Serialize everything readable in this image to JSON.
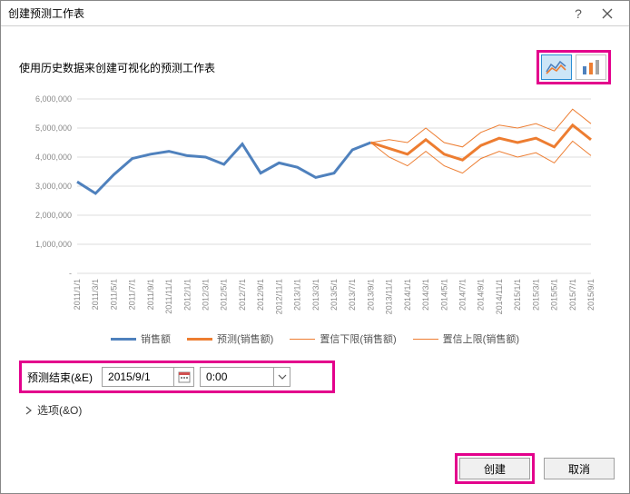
{
  "dialog": {
    "title": "创建预测工作表",
    "subtitle": "使用历史数据来创建可视化的预测工作表"
  },
  "chart_types": {
    "line_active": true
  },
  "chart": {
    "type": "line",
    "ylim": [
      0,
      6000000
    ],
    "ytick_step": 1000000,
    "ylabels": [
      "-",
      "1,000,000",
      "2,000,000",
      "3,000,000",
      "4,000,000",
      "5,000,000",
      "6,000,000"
    ],
    "xlabels": [
      "2011/1/1",
      "2011/3/1",
      "2011/5/1",
      "2011/7/1",
      "2011/9/1",
      "2011/11/1",
      "2012/1/1",
      "2012/3/1",
      "2012/5/1",
      "2012/7/1",
      "2012/9/1",
      "2012/11/1",
      "2013/1/1",
      "2013/3/1",
      "2013/5/1",
      "2013/7/1",
      "2013/9/1",
      "2013/11/1",
      "2014/1/1",
      "2014/3/1",
      "2014/5/1",
      "2014/7/1",
      "2014/9/1",
      "2014/11/1",
      "2015/1/1",
      "2015/3/1",
      "2015/5/1",
      "2015/7/1",
      "2015/9/1"
    ],
    "split_index": 16,
    "actual": [
      3150000,
      2750000,
      3400000,
      3950000,
      4100000,
      4200000,
      4050000,
      4000000,
      3750000,
      4450000,
      3450000,
      3800000,
      3650000,
      3300000,
      3450000,
      4250000,
      4500000
    ],
    "forecast": [
      4500000,
      4300000,
      4100000,
      4600000,
      4100000,
      3900000,
      4400000,
      4650000,
      4500000,
      4650000,
      4350000,
      5100000,
      4600000
    ],
    "lower": [
      4500000,
      4000000,
      3700000,
      4200000,
      3700000,
      3450000,
      3950000,
      4200000,
      4000000,
      4150000,
      3800000,
      4550000,
      4050000
    ],
    "upper": [
      4500000,
      4600000,
      4500000,
      5000000,
      4500000,
      4350000,
      4850000,
      5100000,
      5000000,
      5150000,
      4900000,
      5650000,
      5150000
    ],
    "colors": {
      "actual": "#4f81bd",
      "forecast": "#ed7d31",
      "bounds": "#ed7d31",
      "grid": "#dddddd",
      "axis_text": "#888888",
      "highlight": "#e3008c"
    },
    "stroke": {
      "actual": 3,
      "forecast": 3,
      "bounds": 1
    }
  },
  "legend": {
    "items": [
      {
        "label": "销售额",
        "color": "#4f81bd",
        "width": 3
      },
      {
        "label": "预测(销售额)",
        "color": "#ed7d31",
        "width": 3
      },
      {
        "label": "置信下限(销售额)",
        "color": "#ed7d31",
        "width": 1
      },
      {
        "label": "置信上限(销售额)",
        "color": "#ed7d31",
        "width": 1
      }
    ]
  },
  "forecast_end": {
    "label": "预测结束(&E)",
    "date": "2015/9/1",
    "time": "0:00"
  },
  "options": {
    "label": "选项(&O)"
  },
  "buttons": {
    "create": "创建",
    "cancel": "取消"
  }
}
